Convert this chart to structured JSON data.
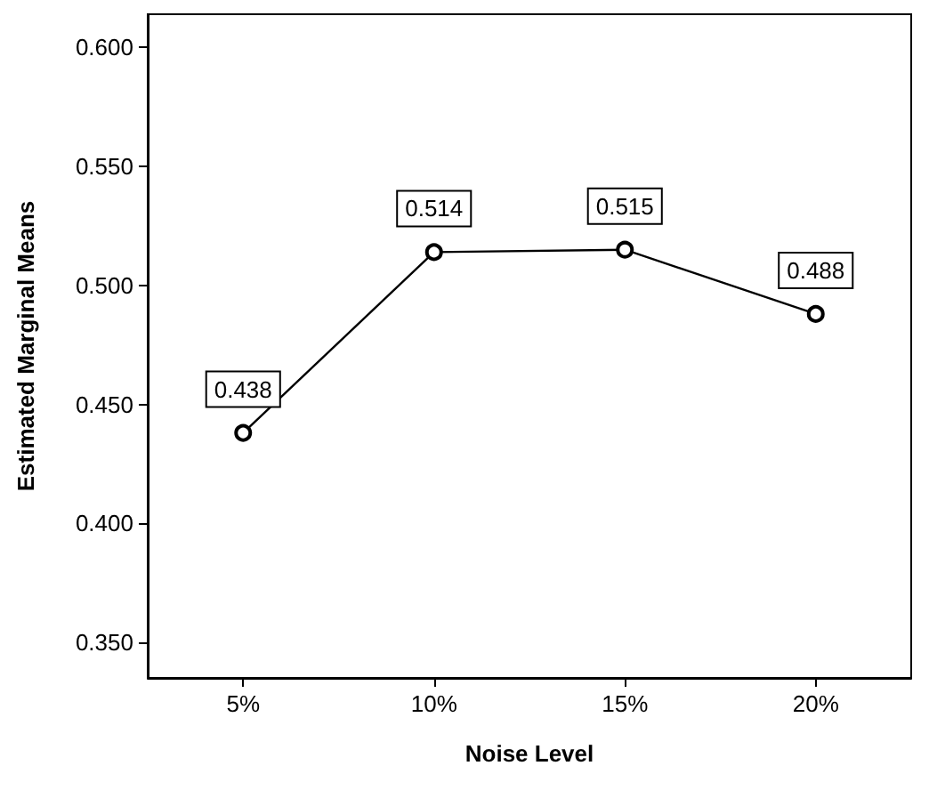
{
  "chart_data": {
    "type": "line",
    "xlabel": "Noise Level",
    "ylabel": "Estimated Marginal Means",
    "categories": [
      "5%",
      "10%",
      "15%",
      "20%"
    ],
    "series": [
      {
        "color": "#000000",
        "values": [
          0.438,
          0.514,
          0.515,
          0.488
        ]
      }
    ],
    "ylim": [
      0.335,
      0.614
    ],
    "yticks": [
      {
        "value": 0.35,
        "label": "0.350"
      },
      {
        "value": 0.4,
        "label": "0.400"
      },
      {
        "value": 0.45,
        "label": "0.450"
      },
      {
        "value": 0.5,
        "label": "0.500"
      },
      {
        "value": 0.55,
        "label": "0.550"
      },
      {
        "value": 0.6,
        "label": "0.600"
      }
    ],
    "data_labels": true,
    "marker": "circle",
    "line_style": "solid",
    "grid": false
  }
}
